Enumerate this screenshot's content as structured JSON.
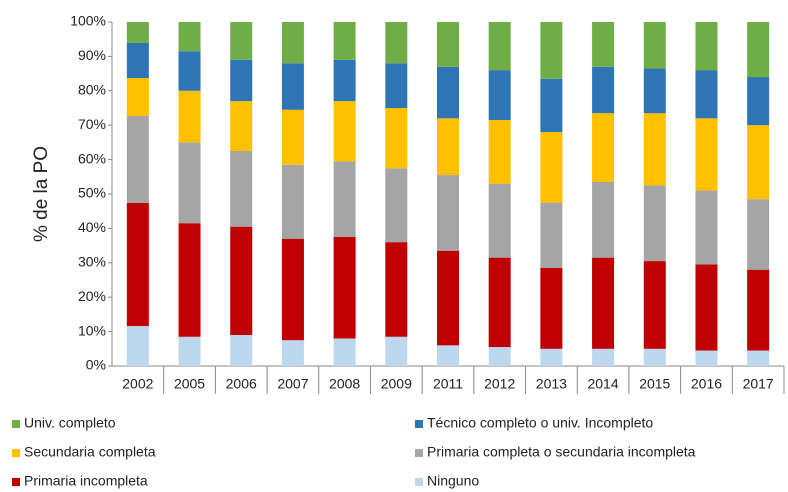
{
  "chart_data": {
    "type": "stacked-bar",
    "y_label": "% de la PO",
    "categories": [
      "2002",
      "2005",
      "2006",
      "2007",
      "2008",
      "2009",
      "2011",
      "2012",
      "2013",
      "2014",
      "2015",
      "2016",
      "2017"
    ],
    "series": [
      {
        "name": "Ninguno",
        "color": "#bdd7ee",
        "values": [
          11.6,
          8.5,
          9,
          7.5,
          8,
          8.5,
          6,
          5.5,
          5,
          5,
          5,
          4.5,
          4.5
        ]
      },
      {
        "name": "Primaria incompleta",
        "color": "#c00000",
        "values": [
          35.8,
          33,
          31.5,
          29.5,
          29.5,
          27.5,
          27.5,
          26,
          23.5,
          26.5,
          25.5,
          25,
          23.5
        ]
      },
      {
        "name": "Primaria completa o secundaria incompleta",
        "color": "#a5a5a5",
        "values": [
          25.3,
          23.5,
          22,
          21.5,
          22,
          21.5,
          22,
          21.5,
          19,
          22,
          22,
          21.5,
          20.5
        ]
      },
      {
        "name": "Secundaria completa",
        "color": "#ffc000",
        "values": [
          11,
          15,
          14.5,
          16,
          17.5,
          17.5,
          16.5,
          18.5,
          20.5,
          20,
          21,
          21,
          21.5
        ]
      },
      {
        "name": "Técnico completo o univ. Incompleto",
        "color": "#2e75b6",
        "values": [
          10.2,
          11.5,
          12,
          13.5,
          12,
          13,
          15,
          14.5,
          15.5,
          13.5,
          13,
          14,
          14
        ]
      },
      {
        "name": "Univ. completo",
        "color": "#70ad47",
        "values": [
          6.1,
          8.5,
          11,
          12,
          11,
          12,
          13,
          14,
          16.5,
          13,
          13.5,
          14,
          16
        ]
      }
    ],
    "ylim": [
      0,
      100
    ],
    "yticks": [
      {
        "value": 0,
        "label": "0%"
      },
      {
        "value": 10,
        "label": "10%"
      },
      {
        "value": 20,
        "label": "20%"
      },
      {
        "value": 30,
        "label": "30%"
      },
      {
        "value": 40,
        "label": "40%"
      },
      {
        "value": 50,
        "label": "50%"
      },
      {
        "value": 60,
        "label": "60%"
      },
      {
        "value": 70,
        "label": "70%"
      },
      {
        "value": 80,
        "label": "80%"
      },
      {
        "value": 90,
        "label": "90%"
      },
      {
        "value": 100,
        "label": "100%"
      }
    ]
  }
}
